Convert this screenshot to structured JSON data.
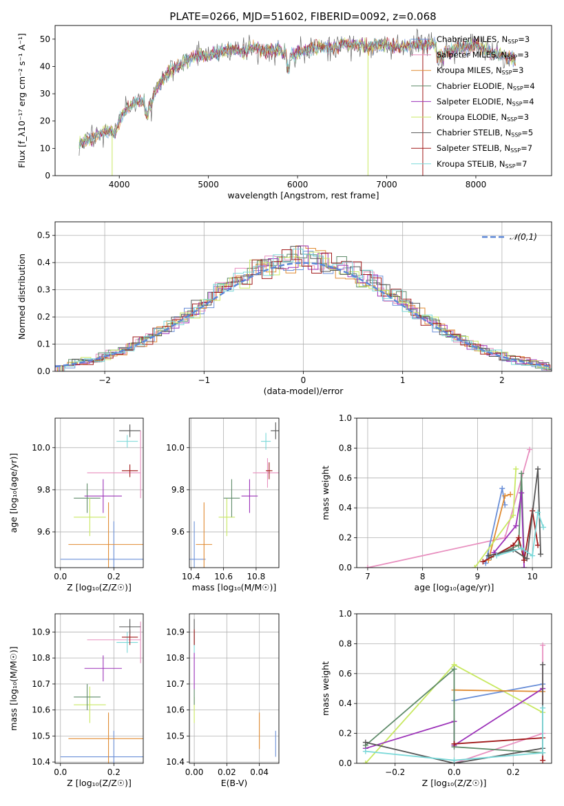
{
  "figure": {
    "title": "PLATE=0266, MJD=51602, FIBERID=0092, z=0.068"
  },
  "series_colors": {
    "Chabrier MILES": "#6a8fd8",
    "Salpeter MILES": "#e88fbf",
    "Kroupa MILES": "#e08a30",
    "Chabrier ELODIE": "#5d8a68",
    "Salpeter ELODIE": "#9b30b8",
    "Kroupa ELODIE": "#c8e860",
    "Chabrier STELIB": "#555555",
    "Salpeter STELIB": "#a01818",
    "Kroupa STELIB": "#78d8d8"
  },
  "chart_data": [
    {
      "id": "spectrum",
      "type": "line",
      "xlabel": "wavelength [Angstrom, rest frame]",
      "ylabel": "Flux [f_λ10⁻¹⁷ erg cm⁻² s⁻¹ A⁻¹]",
      "xlim": [
        3280,
        8850
      ],
      "ylim": [
        0,
        55
      ],
      "xticks": [
        4000,
        5000,
        6000,
        7000,
        8000
      ],
      "yticks": [
        0,
        10,
        20,
        30,
        40,
        50
      ],
      "legend_position": "top-right",
      "anchors": [
        [
          3550,
          12
        ],
        [
          3650,
          13
        ],
        [
          3750,
          15
        ],
        [
          3850,
          16
        ],
        [
          3900,
          17
        ],
        [
          3950,
          15
        ],
        [
          4000,
          20
        ],
        [
          4050,
          23
        ],
        [
          4100,
          25
        ],
        [
          4200,
          27
        ],
        [
          4300,
          27
        ],
        [
          4350,
          25
        ],
        [
          4400,
          31
        ],
        [
          4500,
          36
        ],
        [
          4600,
          39
        ],
        [
          4700,
          41
        ],
        [
          4800,
          43
        ],
        [
          4900,
          44
        ],
        [
          5000,
          44
        ],
        [
          5100,
          45
        ],
        [
          5200,
          46
        ],
        [
          5300,
          46
        ],
        [
          5400,
          45
        ],
        [
          5500,
          47
        ],
        [
          5600,
          46
        ],
        [
          5700,
          46
        ],
        [
          5800,
          46
        ],
        [
          5900,
          44
        ],
        [
          6000,
          45
        ],
        [
          6100,
          46
        ],
        [
          6200,
          47
        ],
        [
          6300,
          47
        ],
        [
          6400,
          47
        ],
        [
          6500,
          48
        ],
        [
          6600,
          48
        ],
        [
          6700,
          48
        ],
        [
          6800,
          47
        ],
        [
          6900,
          48
        ],
        [
          7000,
          48
        ],
        [
          7100,
          47
        ],
        [
          7200,
          47
        ],
        [
          7300,
          48
        ],
        [
          7400,
          48
        ],
        [
          7500,
          48
        ],
        [
          7600,
          47
        ],
        [
          7700,
          45
        ],
        [
          7800,
          47
        ],
        [
          7900,
          47
        ],
        [
          8000,
          48
        ],
        [
          8100,
          46
        ],
        [
          8200,
          45
        ],
        [
          8300,
          44
        ],
        [
          8400,
          43
        ],
        [
          8450,
          42
        ]
      ],
      "series": [
        {
          "name": "Chabrier MILES",
          "legend": "N_SSP=3"
        },
        {
          "name": "Salpeter MILES",
          "legend": "N_SSP=3"
        },
        {
          "name": "Kroupa MILES",
          "legend": "N_SSP=3"
        },
        {
          "name": "Chabrier ELODIE",
          "legend": "N_SSP=4"
        },
        {
          "name": "Salpeter ELODIE",
          "legend": "N_SSP=4"
        },
        {
          "name": "Kroupa ELODIE",
          "legend": "N_SSP=3"
        },
        {
          "name": "Chabrier STELIB",
          "legend": "N_SSP=5"
        },
        {
          "name": "Salpeter STELIB",
          "legend": "N_SSP=7"
        },
        {
          "name": "Kroupa STELIB",
          "legend": "N_SSP=7"
        }
      ],
      "spikes": [
        {
          "x": 3920,
          "min": 0,
          "series": "Kroupa ELODIE"
        },
        {
          "x": 6790,
          "min": 0,
          "series": "Kroupa ELODIE"
        },
        {
          "x": 7405,
          "min": 0,
          "series": "Salpeter STELIB"
        }
      ]
    },
    {
      "id": "residuals",
      "type": "histogram",
      "xlabel": "(data-model)/error",
      "ylabel": "Normed distribution",
      "xlim": [
        -2.5,
        2.5
      ],
      "ylim": [
        0,
        0.55
      ],
      "xticks": [
        -2,
        -1,
        0,
        1,
        2
      ],
      "yticks": [
        0.0,
        0.1,
        0.2,
        0.3,
        0.4,
        0.5
      ],
      "grid": true,
      "bin_width": 0.1,
      "reference": {
        "name": "𝒩(0,1)",
        "type": "normal",
        "mean": 0,
        "sigma": 1
      }
    },
    {
      "id": "age-vs-Z",
      "type": "scatter",
      "xlabel": "Z [log₁₀(Z/Z☉)]",
      "ylabel": "age [log₁₀(age/yr)]",
      "xlim": [
        -0.02,
        0.31
      ],
      "ylim": [
        9.43,
        10.14
      ],
      "xticks": [
        0.0,
        0.2
      ],
      "yticks": [
        9.6,
        9.8,
        10.0
      ],
      "points": [
        {
          "series": "Chabrier MILES",
          "x": 0.2,
          "xerr": 0.2,
          "y": 9.47,
          "yerr": 0.18
        },
        {
          "series": "Salpeter MILES",
          "x": 0.2,
          "xerr": 0.1,
          "y": 9.88,
          "yerr": 0.0
        },
        {
          "series": "Kroupa MILES",
          "x": 0.18,
          "xerr": 0.15,
          "y": 9.54,
          "yerr": 0.2
        },
        {
          "series": "Chabrier ELODIE",
          "x": 0.1,
          "xerr": 0.05,
          "y": 9.76,
          "yerr": 0.07
        },
        {
          "series": "Salpeter ELODIE",
          "x": 0.16,
          "xerr": 0.07,
          "y": 9.77,
          "yerr": 0.08
        },
        {
          "series": "Kroupa ELODIE",
          "x": 0.11,
          "xerr": 0.06,
          "y": 9.67,
          "yerr": 0.09
        },
        {
          "series": "Chabrier STELIB",
          "x": 0.26,
          "xerr": 0.04,
          "y": 10.08,
          "yerr": 0.03
        },
        {
          "series": "Salpeter STELIB",
          "x": 0.26,
          "xerr": 0.03,
          "y": 9.89,
          "yerr": 0.03
        },
        {
          "series": "Kroupa STELIB",
          "x": 0.25,
          "xerr": 0.04,
          "y": 10.03,
          "yerr": 0.03
        },
        {
          "series": "Salpeter MILES",
          "x": 0.3,
          "xerr": 0.0,
          "y": 9.92,
          "yerr": 0.16
        }
      ]
    },
    {
      "id": "age-vs-mass",
      "type": "scatter",
      "xlabel": "mass [log₁₀(M/M☉)]",
      "ylabel": "",
      "xlim": [
        10.39,
        10.94
      ],
      "ylim": [
        9.43,
        10.14
      ],
      "xticks": [
        10.4,
        10.6,
        10.8
      ],
      "yticks": [
        9.6,
        9.8,
        10.0
      ],
      "points": [
        {
          "series": "Chabrier MILES",
          "x": 10.42,
          "xerr": 0.07,
          "y": 9.47,
          "yerr": 0.18
        },
        {
          "series": "Kroupa MILES",
          "x": 10.48,
          "xerr": 0.05,
          "y": 9.54,
          "yerr": 0.2
        },
        {
          "series": "Kroupa ELODIE",
          "x": 10.62,
          "xerr": 0.05,
          "y": 9.67,
          "yerr": 0.09
        },
        {
          "series": "Chabrier ELODIE",
          "x": 10.65,
          "xerr": 0.05,
          "y": 9.76,
          "yerr": 0.09
        },
        {
          "series": "Salpeter ELODIE",
          "x": 10.76,
          "xerr": 0.05,
          "y": 9.77,
          "yerr": 0.08
        },
        {
          "series": "Salpeter MILES",
          "x": 10.87,
          "xerr": 0.09,
          "y": 9.88,
          "yerr": 0.07
        },
        {
          "series": "Salpeter STELIB",
          "x": 10.88,
          "xerr": 0.02,
          "y": 9.89,
          "yerr": 0.04
        },
        {
          "series": "Kroupa STELIB",
          "x": 10.86,
          "xerr": 0.03,
          "y": 10.03,
          "yerr": 0.04
        },
        {
          "series": "Chabrier STELIB",
          "x": 10.92,
          "xerr": 0.03,
          "y": 10.08,
          "yerr": 0.04
        }
      ]
    },
    {
      "id": "weight-vs-age",
      "type": "line",
      "xlabel": "age [log₁₀(age/yr)]",
      "ylabel": "mass weight",
      "xlim": [
        6.8,
        10.35
      ],
      "ylim": [
        0,
        1.0
      ],
      "xticks": [
        7,
        8,
        9,
        10
      ],
      "yticks": [
        0.0,
        0.2,
        0.4,
        0.6,
        0.8,
        1.0
      ],
      "grid": true,
      "series": [
        {
          "name": "Salpeter MILES",
          "x": [
            7.0,
            9.5,
            9.95
          ],
          "y": [
            0.0,
            0.2,
            0.79
          ]
        },
        {
          "name": "Chabrier MILES",
          "x": [
            9.15,
            9.45,
            9.5
          ],
          "y": [
            0.03,
            0.53,
            0.42
          ]
        },
        {
          "name": "Kroupa MILES",
          "x": [
            9.2,
            9.5,
            9.6
          ],
          "y": [
            0.05,
            0.48,
            0.49
          ]
        },
        {
          "name": "Kroupa ELODIE",
          "x": [
            8.95,
            9.65,
            9.7
          ],
          "y": [
            0.0,
            0.35,
            0.66
          ]
        },
        {
          "name": "Chabrier ELODIE",
          "x": [
            9.25,
            9.75,
            9.8,
            9.85
          ],
          "y": [
            0.07,
            0.15,
            0.63,
            0.05
          ]
        },
        {
          "name": "Salpeter ELODIE",
          "x": [
            9.3,
            9.7,
            9.8,
            9.85
          ],
          "y": [
            0.1,
            0.28,
            0.5,
            0.0
          ]
        },
        {
          "name": "Salpeter STELIB",
          "x": [
            9.1,
            9.65,
            9.75,
            9.85,
            10.0,
            10.1
          ],
          "y": [
            0.04,
            0.15,
            0.2,
            0.05,
            0.38,
            0.15
          ]
        },
        {
          "name": "Chabrier STELIB",
          "x": [
            9.2,
            9.65,
            9.9,
            10.1,
            10.15
          ],
          "y": [
            0.08,
            0.12,
            0.06,
            0.66,
            0.09
          ]
        },
        {
          "name": "Kroupa STELIB",
          "x": [
            9.35,
            9.8,
            10.0,
            10.1,
            10.2
          ],
          "y": [
            0.08,
            0.13,
            0.08,
            0.37,
            0.27
          ]
        }
      ]
    },
    {
      "id": "mass-vs-Z",
      "type": "scatter",
      "xlabel": "Z [log₁₀(Z/Z☉)]",
      "ylabel": "mass [log₁₀(M/M☉)]",
      "xlim": [
        -0.02,
        0.31
      ],
      "ylim": [
        10.395,
        10.97
      ],
      "xticks": [
        0.0,
        0.2
      ],
      "yticks": [
        10.4,
        10.5,
        10.6,
        10.7,
        10.8,
        10.9
      ],
      "points": [
        {
          "series": "Chabrier MILES",
          "x": 0.2,
          "xerr": 0.2,
          "y": 10.42,
          "yerr": 0.1
        },
        {
          "series": "Kroupa MILES",
          "x": 0.18,
          "xerr": 0.15,
          "y": 10.49,
          "yerr": 0.1
        },
        {
          "series": "Kroupa ELODIE",
          "x": 0.11,
          "xerr": 0.06,
          "y": 10.62,
          "yerr": 0.07
        },
        {
          "series": "Chabrier ELODIE",
          "x": 0.1,
          "xerr": 0.05,
          "y": 10.65,
          "yerr": 0.05
        },
        {
          "series": "Salpeter ELODIE",
          "x": 0.16,
          "xerr": 0.07,
          "y": 10.76,
          "yerr": 0.05
        },
        {
          "series": "Salpeter MILES",
          "x": 0.2,
          "xerr": 0.1,
          "y": 10.87,
          "yerr": 0.0
        },
        {
          "series": "Salpeter MILES",
          "x": 0.3,
          "xerr": 0.0,
          "y": 10.86,
          "yerr": 0.08
        },
        {
          "series": "Kroupa STELIB",
          "x": 0.25,
          "xerr": 0.04,
          "y": 10.86,
          "yerr": 0.04
        },
        {
          "series": "Salpeter STELIB",
          "x": 0.26,
          "xerr": 0.03,
          "y": 10.88,
          "yerr": 0.03
        },
        {
          "series": "Chabrier STELIB",
          "x": 0.26,
          "xerr": 0.04,
          "y": 10.92,
          "yerr": 0.03
        }
      ]
    },
    {
      "id": "mass-vs-EBV",
      "type": "scatter",
      "xlabel": "E(B-V)",
      "ylabel": "",
      "xlim": [
        -0.003,
        0.052
      ],
      "ylim": [
        10.395,
        10.97
      ],
      "xticks": [
        0.0,
        0.02,
        0.04
      ],
      "yticks": [
        10.4,
        10.5,
        10.6,
        10.7,
        10.8,
        10.9
      ],
      "points": [
        {
          "series": "Chabrier MILES",
          "x": 0.05,
          "xerr": 0,
          "y": 10.47,
          "yerr": 0.05
        },
        {
          "series": "Kroupa MILES",
          "x": 0.04,
          "xerr": 0,
          "y": 10.52,
          "yerr": 0.07
        },
        {
          "series": "Kroupa ELODIE",
          "x": 0.0,
          "xerr": 0,
          "y": 10.6,
          "yerr": 0.05
        },
        {
          "series": "Salpeter ELODIE",
          "x": 0.0,
          "xerr": 0,
          "y": 10.75,
          "yerr": 0.07
        },
        {
          "series": "Chabrier ELODIE",
          "x": 0.0,
          "xerr": 0,
          "y": 10.65,
          "yerr": 0.03
        },
        {
          "series": "Kroupa STELIB",
          "x": 0.0,
          "xerr": 0,
          "y": 10.86,
          "yerr": 0.04
        },
        {
          "series": "Chabrier STELIB",
          "x": 0.0,
          "xerr": 0,
          "y": 10.9,
          "yerr": 0.05
        },
        {
          "series": "Salpeter STELIB",
          "x": 0.0,
          "xerr": 0,
          "y": 10.88,
          "yerr": 0.03
        }
      ]
    },
    {
      "id": "weight-vs-Z",
      "type": "line",
      "xlabel": "Z [log₁₀(Z/Z☉)]",
      "ylabel": "mass weight",
      "xlim": [
        -0.33,
        0.33
      ],
      "ylim": [
        0,
        1.0
      ],
      "xticks": [
        -0.2,
        0.0,
        0.2
      ],
      "yticks": [
        0.0,
        0.2,
        0.4,
        0.6,
        0.8,
        1.0
      ],
      "grid": true,
      "series": [
        {
          "name": "Kroupa ELODIE",
          "x": [
            -0.3,
            0.0,
            0.3
          ],
          "y": [
            0.0,
            0.66,
            0.34
          ]
        },
        {
          "name": "Chabrier MILES",
          "x": [
            0.0,
            0.3
          ],
          "y": [
            0.42,
            0.53
          ]
        },
        {
          "name": "Kroupa MILES",
          "x": [
            0.0,
            0.3
          ],
          "y": [
            0.49,
            0.48
          ]
        },
        {
          "name": "Salpeter ELODIE",
          "x": [
            -0.3,
            0.0,
            0.0,
            0.3
          ],
          "y": [
            0.1,
            0.28,
            0.12,
            0.5
          ]
        },
        {
          "name": "Salpeter MILES",
          "x": [
            0.0,
            0.3,
            0.3
          ],
          "y": [
            0.0,
            0.2,
            0.79
          ]
        },
        {
          "name": "Chabrier ELODIE",
          "x": [
            -0.3,
            0.0,
            0.0,
            0.3
          ],
          "y": [
            0.12,
            0.63,
            0.11,
            0.07
          ]
        },
        {
          "name": "Salpeter STELIB",
          "x": [
            0.0,
            0.3,
            0.3
          ],
          "y": [
            0.13,
            0.17,
            0.02
          ]
        },
        {
          "name": "Chabrier STELIB",
          "x": [
            -0.3,
            0.0,
            0.3,
            0.3
          ],
          "y": [
            0.14,
            0.0,
            0.1,
            0.66
          ]
        },
        {
          "name": "Kroupa STELIB",
          "x": [
            -0.3,
            0.0,
            0.3,
            0.3
          ],
          "y": [
            0.08,
            0.02,
            0.07,
            0.37
          ]
        }
      ]
    }
  ]
}
